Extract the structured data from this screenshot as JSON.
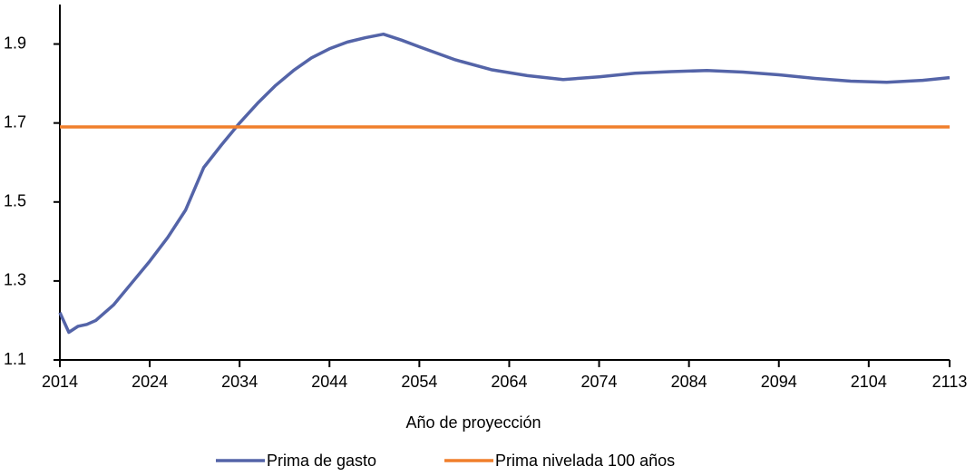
{
  "chart_data": {
    "type": "line",
    "x_label": "Año de proyección",
    "xlim": [
      2014,
      2113
    ],
    "xticks": [
      2014,
      2024,
      2034,
      2044,
      2054,
      2064,
      2074,
      2084,
      2094,
      2104,
      2113
    ],
    "ylim": [
      1.1,
      2.0
    ],
    "yticks": [
      1.1,
      1.3,
      1.5,
      1.7,
      1.9
    ],
    "legend": "bottom",
    "series": [
      {
        "name": "Prima de gasto",
        "color": "#5464a8",
        "x": [
          2014,
          2015,
          2016,
          2017,
          2018,
          2020,
          2022,
          2024,
          2026,
          2028,
          2030,
          2032,
          2034,
          2036,
          2038,
          2040,
          2042,
          2044,
          2046,
          2048,
          2050,
          2052,
          2054,
          2058,
          2062,
          2066,
          2070,
          2074,
          2078,
          2082,
          2086,
          2090,
          2094,
          2098,
          2102,
          2106,
          2110,
          2113
        ],
        "values": [
          1.22,
          1.17,
          1.185,
          1.19,
          1.2,
          1.24,
          1.295,
          1.35,
          1.41,
          1.48,
          1.587,
          1.645,
          1.7,
          1.75,
          1.795,
          1.833,
          1.865,
          1.888,
          1.905,
          1.916,
          1.925,
          1.91,
          1.893,
          1.86,
          1.835,
          1.82,
          1.81,
          1.817,
          1.826,
          1.83,
          1.833,
          1.829,
          1.822,
          1.813,
          1.806,
          1.803,
          1.808,
          1.815
        ]
      },
      {
        "name": "Prima nivelada 100 años",
        "color": "#f07f2c",
        "x": [
          2014,
          2113
        ],
        "values": [
          1.69,
          1.69
        ]
      }
    ]
  }
}
